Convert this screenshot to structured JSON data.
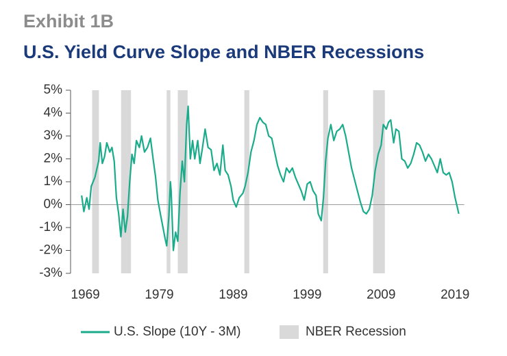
{
  "chart_data": {
    "type": "line",
    "title": "Exhibit 1B",
    "subtitle": "U.S. Yield Curve Slope and NBER Recessions",
    "x": [
      1968.5,
      1968.8,
      1969.2,
      1969.5,
      1969.8,
      1970.3,
      1970.8,
      1971.0,
      1971.3,
      1971.6,
      1971.9,
      1972.3,
      1972.6,
      1972.9,
      1973.2,
      1973.5,
      1973.8,
      1974.1,
      1974.4,
      1974.7,
      1975.0,
      1975.3,
      1975.6,
      1975.9,
      1976.3,
      1976.6,
      1977.0,
      1977.4,
      1977.8,
      1978.2,
      1978.5,
      1978.8,
      1979.2,
      1979.5,
      1979.8,
      1980.0,
      1980.3,
      1980.5,
      1980.6,
      1980.9,
      1981.2,
      1981.5,
      1981.8,
      1982.1,
      1982.4,
      1982.7,
      1982.9,
      1983.2,
      1983.5,
      1983.8,
      1984.2,
      1984.5,
      1984.8,
      1985.2,
      1985.6,
      1986.0,
      1986.4,
      1986.8,
      1987.2,
      1987.6,
      1987.9,
      1988.3,
      1988.7,
      1989.0,
      1989.4,
      1989.8,
      1990.3,
      1990.6,
      1991.0,
      1991.4,
      1991.8,
      1992.2,
      1992.6,
      1993.0,
      1993.4,
      1993.8,
      1994.2,
      1994.6,
      1995.0,
      1995.4,
      1995.8,
      1996.2,
      1996.6,
      1997.0,
      1997.4,
      1997.8,
      1998.2,
      1998.6,
      1999.0,
      1999.4,
      1999.8,
      2000.2,
      2000.5,
      2000.9,
      2001.2,
      2001.5,
      2001.8,
      2002.2,
      2002.6,
      2003.0,
      2003.4,
      2003.8,
      2004.2,
      2004.6,
      2005.0,
      2005.4,
      2005.8,
      2006.2,
      2006.6,
      2007.0,
      2007.4,
      2007.8,
      2008.2,
      2008.6,
      2009.0,
      2009.3,
      2009.7,
      2010.0,
      2010.3,
      2010.7,
      2011.0,
      2011.4,
      2011.8,
      2012.2,
      2012.6,
      2013.0,
      2013.4,
      2013.8,
      2014.2,
      2014.6,
      2015.0,
      2015.4,
      2015.8,
      2016.2,
      2016.6,
      2017.0,
      2017.4,
      2017.8,
      2018.2,
      2018.6,
      2019.0,
      2019.3,
      2019.5
    ],
    "series": [
      {
        "name": "U.S. Slope (10Y - 3M)",
        "color": "#1aab8b",
        "values": [
          0.4,
          -0.3,
          0.3,
          -0.2,
          0.8,
          1.2,
          1.9,
          2.7,
          1.8,
          2.1,
          2.7,
          2.3,
          2.5,
          1.9,
          0.3,
          -0.4,
          -1.4,
          -0.2,
          -1.2,
          -0.5,
          1.0,
          2.2,
          1.8,
          2.8,
          2.5,
          3.0,
          2.3,
          2.5,
          2.9,
          1.9,
          1.2,
          0.2,
          -0.5,
          -1.0,
          -1.5,
          -1.8,
          -0.5,
          1.0,
          0.6,
          -2.0,
          -1.2,
          -1.6,
          0.5,
          1.9,
          1.0,
          3.5,
          4.3,
          2.0,
          2.8,
          2.0,
          2.8,
          1.8,
          2.4,
          3.3,
          2.5,
          2.4,
          1.5,
          1.8,
          1.3,
          2.6,
          1.5,
          1.3,
          0.8,
          0.2,
          -0.1,
          0.3,
          0.5,
          0.8,
          1.4,
          2.3,
          2.8,
          3.5,
          3.8,
          3.6,
          3.5,
          3.0,
          2.9,
          2.3,
          1.7,
          1.3,
          1.0,
          1.6,
          1.4,
          1.6,
          1.2,
          0.9,
          0.6,
          0.2,
          0.9,
          1.0,
          0.6,
          0.4,
          -0.4,
          -0.7,
          0.3,
          1.9,
          2.9,
          3.5,
          2.8,
          3.2,
          3.3,
          3.5,
          3.0,
          2.3,
          1.6,
          1.1,
          0.6,
          0.1,
          -0.3,
          -0.4,
          -0.2,
          0.4,
          1.5,
          2.2,
          2.6,
          3.5,
          3.3,
          3.6,
          3.7,
          2.7,
          3.3,
          3.2,
          2.0,
          1.9,
          1.6,
          1.8,
          2.2,
          2.7,
          2.6,
          2.3,
          1.9,
          2.2,
          2.0,
          1.7,
          1.4,
          2.0,
          1.4,
          1.3,
          1.4,
          1.0,
          0.3,
          -0.1,
          -0.4
        ]
      }
    ],
    "recessions": {
      "name": "NBER Recession",
      "color": "#d9d9d9",
      "periods": [
        [
          1969.92,
          1970.83
        ],
        [
          1973.83,
          1975.17
        ],
        [
          1980.0,
          1980.5
        ],
        [
          1981.5,
          1982.83
        ],
        [
          1990.5,
          1991.17
        ],
        [
          2001.17,
          2001.83
        ],
        [
          2007.92,
          2009.5
        ]
      ]
    },
    "xlim": [
      1967,
      2020
    ],
    "xticks": [
      1969,
      1979,
      1989,
      1999,
      2009,
      2019
    ],
    "ylim": [
      -3,
      5
    ],
    "yticks": [
      {
        "value": -3,
        "label": "-3%"
      },
      {
        "value": -2,
        "label": "-2%"
      },
      {
        "value": -1,
        "label": "-1%"
      },
      {
        "value": 0,
        "label": "0%"
      },
      {
        "value": 1,
        "label": "1%"
      },
      {
        "value": 2,
        "label": "2%"
      },
      {
        "value": 3,
        "label": "3%"
      },
      {
        "value": 4,
        "label": "4%"
      },
      {
        "value": 5,
        "label": "5%"
      }
    ],
    "grid": false
  }
}
